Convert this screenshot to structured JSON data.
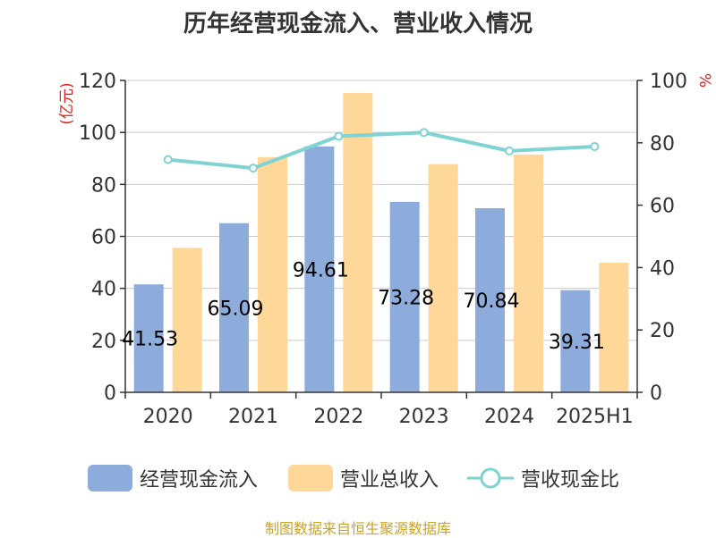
{
  "title": "历年经营现金流入、营业收入情况",
  "source": "制图数据来自恒生聚源数据库",
  "legend": {
    "inflow": "经营现金流入",
    "revenue": "营业总收入",
    "ratio": "营收现金比"
  },
  "colors": {
    "inflow": "#8eacdb",
    "revenue": "#ffd899",
    "ratio": "#7fd3d3",
    "unit": "#e02020"
  },
  "chart_data": {
    "type": "bar",
    "categories": [
      "2020",
      "2021",
      "2022",
      "2023",
      "2024",
      "2025H1"
    ],
    "series": [
      {
        "name": "经营现金流入",
        "type": "bar",
        "axis": "left",
        "values": [
          41.53,
          65.09,
          94.61,
          73.28,
          70.84,
          39.31
        ],
        "labels": [
          "41.53",
          "65.09",
          "94.61",
          "73.28",
          "70.84",
          "39.31"
        ]
      },
      {
        "name": "营业总收入",
        "type": "bar",
        "axis": "left",
        "values": [
          55.6,
          90.5,
          115.2,
          87.8,
          91.5,
          49.9
        ]
      },
      {
        "name": "营收现金比",
        "type": "line",
        "axis": "right",
        "values": [
          74.6,
          71.9,
          82.1,
          83.3,
          77.4,
          78.8
        ]
      }
    ],
    "y_left": {
      "label": "(亿元)",
      "ylim": [
        0,
        120
      ],
      "ticks": [
        0,
        20,
        40,
        60,
        80,
        100,
        120
      ]
    },
    "y_right": {
      "label": "%",
      "ylim": [
        0,
        100
      ],
      "ticks": [
        0,
        20,
        40,
        60,
        80,
        100
      ]
    },
    "grid": true,
    "legend_position": "bottom"
  }
}
